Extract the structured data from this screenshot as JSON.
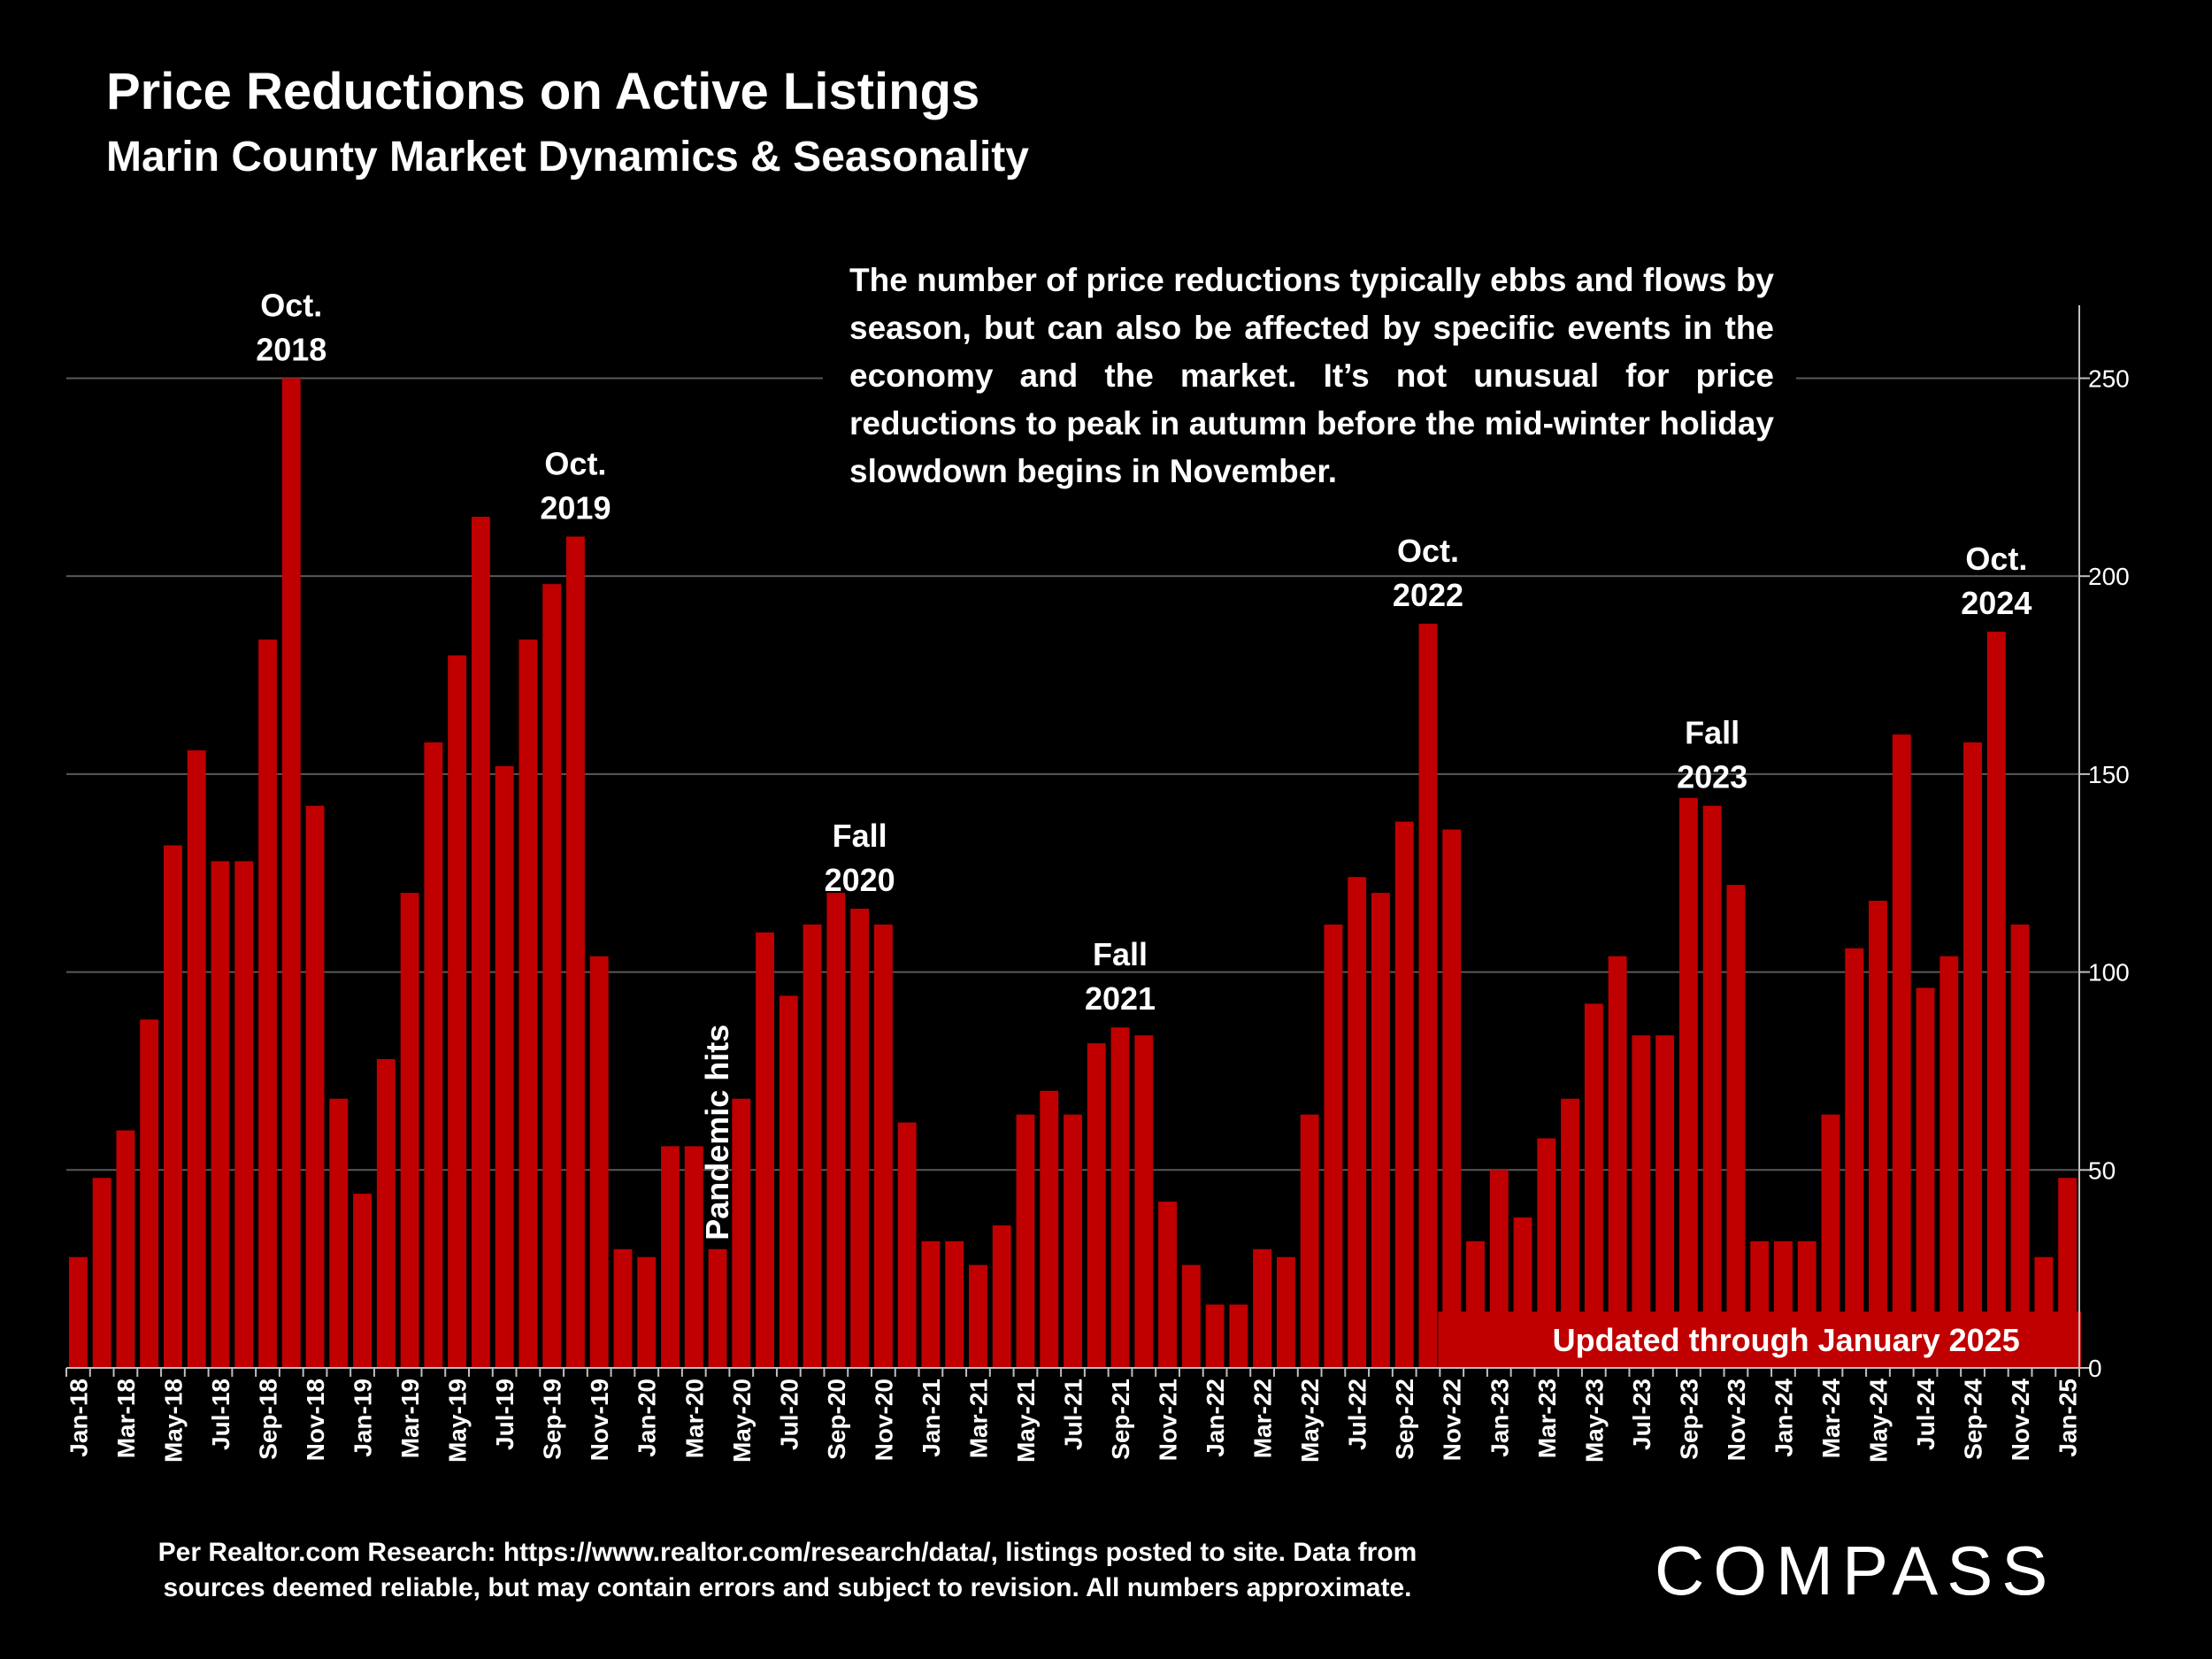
{
  "header": {
    "title": "Price Reductions on Active Listings",
    "subtitle": "Marin County Market Dynamics & Seasonality"
  },
  "note": "The number of price reductions typically ebbs and flows by season, but can also be affected by specific events in the economy and the market. It’s not unusual for price reductions to peak in autumn before the mid-winter holiday slowdown begins in November.",
  "footer": {
    "line1": "Per Realtor.com Research:  https://www.realtor.com/research/data/, listings posted to site. Data from",
    "line2": "sources deemed reliable, but may contain errors and subject to revision. All numbers approximate."
  },
  "logo": "COMPASS",
  "colors": {
    "bar": "#c00000",
    "background": "#000000",
    "text": "#ffffff",
    "grid": "#595959"
  },
  "chart_data": {
    "type": "bar",
    "title": "Price Reductions on Active Listings",
    "ylim": [
      0,
      270
    ],
    "yticks": [
      0,
      50,
      100,
      150,
      200,
      250
    ],
    "x_tick_every": 2,
    "months": [
      "Jan-18",
      "Feb-18",
      "Mar-18",
      "Apr-18",
      "May-18",
      "Jun-18",
      "Jul-18",
      "Aug-18",
      "Sep-18",
      "Oct-18",
      "Nov-18",
      "Dec-18",
      "Jan-19",
      "Feb-19",
      "Mar-19",
      "Apr-19",
      "May-19",
      "Jun-19",
      "Jul-19",
      "Aug-19",
      "Sep-19",
      "Oct-19",
      "Nov-19",
      "Dec-19",
      "Jan-20",
      "Feb-20",
      "Mar-20",
      "Apr-20",
      "May-20",
      "Jun-20",
      "Jul-20",
      "Aug-20",
      "Sep-20",
      "Oct-20",
      "Nov-20",
      "Dec-20",
      "Jan-21",
      "Feb-21",
      "Mar-21",
      "Apr-21",
      "May-21",
      "Jun-21",
      "Jul-21",
      "Aug-21",
      "Sep-21",
      "Oct-21",
      "Nov-21",
      "Dec-21",
      "Jan-22",
      "Feb-22",
      "Mar-22",
      "Apr-22",
      "May-22",
      "Jun-22",
      "Jul-22",
      "Aug-22",
      "Sep-22",
      "Oct-22",
      "Nov-22",
      "Dec-22",
      "Jan-23",
      "Feb-23",
      "Mar-23",
      "Apr-23",
      "May-23",
      "Jun-23",
      "Jul-23",
      "Aug-23",
      "Sep-23",
      "Oct-23",
      "Nov-23",
      "Dec-23",
      "Jan-24",
      "Feb-24",
      "Mar-24",
      "Apr-24",
      "May-24",
      "Jun-24",
      "Jul-24",
      "Aug-24",
      "Sep-24",
      "Oct-24",
      "Nov-24",
      "Dec-24",
      "Jan-25"
    ],
    "values": [
      28,
      48,
      60,
      88,
      132,
      156,
      128,
      128,
      184,
      250,
      142,
      68,
      44,
      78,
      120,
      158,
      180,
      215,
      152,
      184,
      198,
      210,
      104,
      30,
      28,
      56,
      56,
      30,
      68,
      110,
      94,
      112,
      120,
      116,
      112,
      62,
      32,
      32,
      26,
      36,
      64,
      70,
      64,
      82,
      86,
      84,
      42,
      26,
      16,
      16,
      30,
      28,
      64,
      112,
      124,
      120,
      138,
      188,
      136,
      32,
      50,
      38,
      58,
      68,
      92,
      104,
      84,
      84,
      144,
      142,
      122,
      32,
      32,
      32,
      64,
      106,
      118,
      160,
      96,
      104,
      158,
      186,
      112,
      28,
      48
    ],
    "annotations": [
      {
        "index": 9,
        "lines": [
          "Oct.",
          "2018"
        ]
      },
      {
        "index": 21,
        "lines": [
          "Oct.",
          "2019"
        ]
      },
      {
        "index": 33,
        "lines": [
          "Fall",
          "2020"
        ]
      },
      {
        "index": 44,
        "lines": [
          "Fall",
          "2021"
        ]
      },
      {
        "index": 57,
        "lines": [
          "Oct.",
          "2022"
        ]
      },
      {
        "index": 69,
        "lines": [
          "Fall",
          "2023"
        ]
      },
      {
        "index": 81,
        "lines": [
          "Oct.",
          "2024"
        ]
      }
    ],
    "pandemic_label": {
      "index": 27,
      "text": "Pandemic hits"
    },
    "banner": {
      "start_index": 58,
      "end_index": 84,
      "value": 16,
      "text": "Updated through January 2025"
    }
  }
}
